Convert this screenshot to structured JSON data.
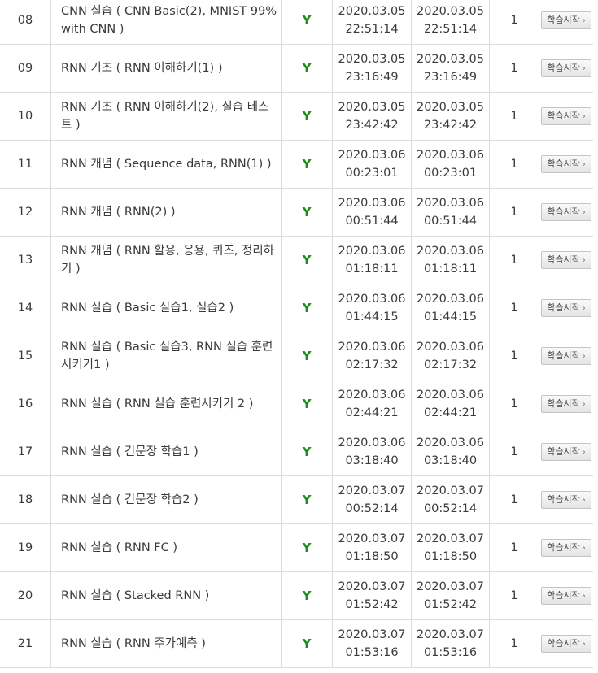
{
  "colors": {
    "done_mark": "#1f8a1f",
    "border": "#dcdcdc"
  },
  "rows": [
    {
      "no": "08",
      "title": "CNN 실습 ( CNN Basic(2), MNIST 99% with CNN )",
      "done": "Y",
      "start_date": "2020.03.05",
      "start_time": "22:51:14",
      "end_date": "2020.03.05",
      "end_time": "22:51:14",
      "count": "1",
      "action": "학습시작"
    },
    {
      "no": "09",
      "title": "RNN 기초 ( RNN 이해하기(1) )",
      "done": "Y",
      "start_date": "2020.03.05",
      "start_time": "23:16:49",
      "end_date": "2020.03.05",
      "end_time": "23:16:49",
      "count": "1",
      "action": "학습시작"
    },
    {
      "no": "10",
      "title": "RNN 기초 ( RNN 이해하기(2), 실습 테스트 )",
      "done": "Y",
      "start_date": "2020.03.05",
      "start_time": "23:42:42",
      "end_date": "2020.03.05",
      "end_time": "23:42:42",
      "count": "1",
      "action": "학습시작"
    },
    {
      "no": "11",
      "title": "RNN 개념 ( Sequence data, RNN(1) )",
      "done": "Y",
      "start_date": "2020.03.06",
      "start_time": "00:23:01",
      "end_date": "2020.03.06",
      "end_time": "00:23:01",
      "count": "1",
      "action": "학습시작"
    },
    {
      "no": "12",
      "title": "RNN 개념 ( RNN(2) )",
      "done": "Y",
      "start_date": "2020.03.06",
      "start_time": "00:51:44",
      "end_date": "2020.03.06",
      "end_time": "00:51:44",
      "count": "1",
      "action": "학습시작"
    },
    {
      "no": "13",
      "title": "RNN 개념 ( RNN 활용, 응용, 퀴즈, 정리하기 )",
      "done": "Y",
      "start_date": "2020.03.06",
      "start_time": "01:18:11",
      "end_date": "2020.03.06",
      "end_time": "01:18:11",
      "count": "1",
      "action": "학습시작"
    },
    {
      "no": "14",
      "title": "RNN 실습 ( Basic 실습1, 실습2 )",
      "done": "Y",
      "start_date": "2020.03.06",
      "start_time": "01:44:15",
      "end_date": "2020.03.06",
      "end_time": "01:44:15",
      "count": "1",
      "action": "학습시작"
    },
    {
      "no": "15",
      "title": "RNN 실습 ( Basic 실습3, RNN 실습 훈련시키기1 )",
      "done": "Y",
      "start_date": "2020.03.06",
      "start_time": "02:17:32",
      "end_date": "2020.03.06",
      "end_time": "02:17:32",
      "count": "1",
      "action": "학습시작"
    },
    {
      "no": "16",
      "title": "RNN 실습 ( RNN 실습 훈련시키기 2 )",
      "done": "Y",
      "start_date": "2020.03.06",
      "start_time": "02:44:21",
      "end_date": "2020.03.06",
      "end_time": "02:44:21",
      "count": "1",
      "action": "학습시작"
    },
    {
      "no": "17",
      "title": "RNN 실습 ( 긴문장 학습1 )",
      "done": "Y",
      "start_date": "2020.03.06",
      "start_time": "03:18:40",
      "end_date": "2020.03.06",
      "end_time": "03:18:40",
      "count": "1",
      "action": "학습시작"
    },
    {
      "no": "18",
      "title": "RNN 실습 ( 긴문장 학습2 )",
      "done": "Y",
      "start_date": "2020.03.07",
      "start_time": "00:52:14",
      "end_date": "2020.03.07",
      "end_time": "00:52:14",
      "count": "1",
      "action": "학습시작"
    },
    {
      "no": "19",
      "title": "RNN 실습 ( RNN FC )",
      "done": "Y",
      "start_date": "2020.03.07",
      "start_time": "01:18:50",
      "end_date": "2020.03.07",
      "end_time": "01:18:50",
      "count": "1",
      "action": "학습시작"
    },
    {
      "no": "20",
      "title": "RNN 실습 ( Stacked RNN )",
      "done": "Y",
      "start_date": "2020.03.07",
      "start_time": "01:52:42",
      "end_date": "2020.03.07",
      "end_time": "01:52:42",
      "count": "1",
      "action": "학습시작"
    },
    {
      "no": "21",
      "title": "RNN 실습 ( RNN 주가예측 )",
      "done": "Y",
      "start_date": "2020.03.07",
      "start_time": "01:53:16",
      "end_date": "2020.03.07",
      "end_time": "01:53:16",
      "count": "1",
      "action": "학습시작"
    }
  ]
}
